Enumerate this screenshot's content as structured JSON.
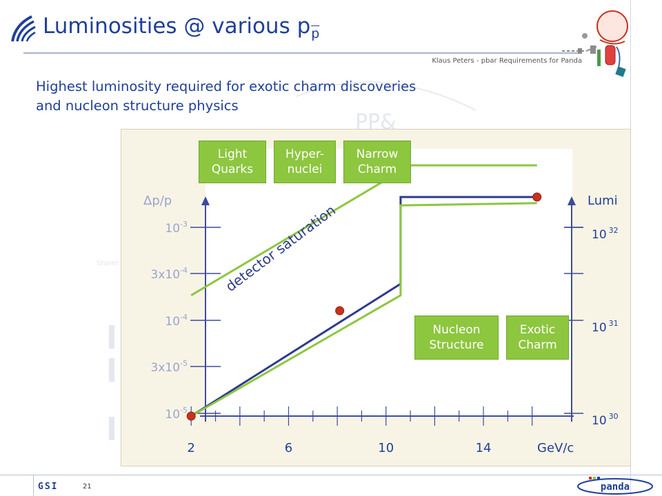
{
  "slide": {
    "title_main": "Luminosities @ various p",
    "title_sub": "p",
    "byline": "Klaus Peters - pbar Requirements for Panda",
    "subtitle_line1": "Highest luminosity required for exotic charm discoveries",
    "subtitle_line2": "and nucleon structure physics",
    "page_number": "21",
    "gsi_logo_text": "GSI",
    "panda_logo_text": "panda"
  },
  "colors": {
    "title_blue": "#1f3f99",
    "navy_line": "#2e3a8c",
    "green_line": "#8dc63f",
    "marker_red": "#c8321e",
    "axis_blue": "#3c4a9e",
    "dim_label": "#9aa4d0"
  },
  "chart_data": {
    "type": "line",
    "x": {
      "label": "GeV/c",
      "ticks": [
        "2",
        "6",
        "10",
        "14"
      ],
      "tick_values": [
        2,
        6,
        10,
        14
      ],
      "range": [
        1.4,
        17.0
      ]
    },
    "y_left": {
      "label": "Δp/p",
      "ticks": [
        {
          "base": "10",
          "exp": "-3",
          "value": 0.001
        },
        {
          "base": "3x10",
          "exp": "-4",
          "value": 0.0003
        },
        {
          "base": "10",
          "exp": "-4",
          "value": 0.0001
        },
        {
          "base": "3x10",
          "exp": "-5",
          "value": 3e-05
        },
        {
          "base": "10",
          "exp": "-5",
          "value": 1e-05
        }
      ],
      "scale": "log"
    },
    "y_right": {
      "label": "Lumi",
      "ticks": [
        {
          "base": "10",
          "exp": "32",
          "value": 1e+32
        },
        {
          "base": "10",
          "exp": "31",
          "value": 1e+31
        },
        {
          "base": "10",
          "exp": "30",
          "value": 1e+30
        }
      ],
      "scale": "log",
      "range": [
        1e+30,
        1.2e+32
      ]
    },
    "series": [
      {
        "color": "#2e3a8c",
        "points": [
          [
            2,
            1e+30
          ],
          [
            10.6,
            1.8e+31
          ],
          [
            10.6,
            1.2e+32
          ],
          [
            16.2,
            1.2e+32
          ]
        ],
        "markers": [
          [
            2,
            1e+30
          ],
          [
            8.1,
            1e+31
          ],
          [
            16.2,
            1.2e+32
          ]
        ]
      },
      {
        "color": "#8dc63f",
        "points": [
          [
            2,
            1e+30
          ],
          [
            10.6,
            1.4e+31
          ],
          [
            10.6,
            1e+32
          ],
          [
            16.2,
            1.05e+32
          ]
        ]
      },
      {
        "color": "#8dc63f",
        "points": [
          [
            2,
            1.4e+31
          ],
          [
            11.0,
            2.4e+32
          ],
          [
            16.2,
            2.4e+32
          ]
        ]
      }
    ],
    "annotations": [
      {
        "text": "detector saturation",
        "color": "#2e3a8c"
      }
    ],
    "categories": [
      {
        "line1": "Light",
        "line2": "Quarks"
      },
      {
        "line1": "Hyper-",
        "line2": "nuclei"
      },
      {
        "line1": "Narrow",
        "line2": "Charm"
      },
      {
        "line1": "Nucleon",
        "line2": "Structure"
      },
      {
        "line1": "Exotic",
        "line2": "Charm"
      }
    ]
  }
}
